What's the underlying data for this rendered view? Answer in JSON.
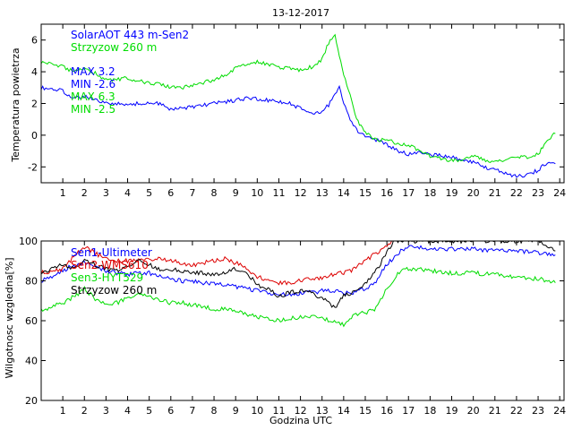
{
  "chart_data": [
    {
      "type": "line",
      "title": "13-12-2017",
      "xlabel": "",
      "ylabel": "Temperatura powietrza",
      "xlim": [
        0,
        24.2
      ],
      "ylim": [
        -3,
        7
      ],
      "xticks": [
        1,
        2,
        3,
        4,
        5,
        6,
        7,
        8,
        9,
        10,
        11,
        12,
        13,
        14,
        15,
        16,
        17,
        18,
        19,
        20,
        21,
        22,
        23,
        24
      ],
      "yticks": [
        -2,
        0,
        2,
        4,
        6
      ],
      "annotations": [
        "MAX 3.2",
        "MIN -2.6",
        "MAX 6.3",
        "MIN -2.5"
      ],
      "annotation_colors": [
        "#0000ff",
        "#0000ff",
        "#00dd00",
        "#00dd00"
      ],
      "series": [
        {
          "name": "SolarAOT 443 m-Sen2",
          "color": "#0000ff",
          "x": [
            0,
            0.5,
            1,
            1.5,
            2,
            2.5,
            3,
            3.5,
            4,
            4.5,
            5,
            5.5,
            6,
            6.5,
            7,
            7.5,
            8,
            8.5,
            9,
            9.5,
            10,
            10.5,
            11,
            11.5,
            12,
            12.5,
            13,
            13.3,
            13.6,
            13.8,
            14,
            14.3,
            14.6,
            15,
            15.5,
            16,
            16.5,
            17,
            17.5,
            18,
            18.5,
            19,
            19.5,
            20,
            20.5,
            21,
            21.5,
            22,
            22.5,
            23,
            23.5,
            23.8
          ],
          "y": [
            3.0,
            2.9,
            2.8,
            2.3,
            2.5,
            2.2,
            2.0,
            2.0,
            1.9,
            2.0,
            2.0,
            2.0,
            1.6,
            1.7,
            1.8,
            1.9,
            2.0,
            2.1,
            2.2,
            2.3,
            2.3,
            2.2,
            2.1,
            2.0,
            1.7,
            1.4,
            1.5,
            1.9,
            2.6,
            3.2,
            2.0,
            1.0,
            0.3,
            0.0,
            -0.3,
            -0.6,
            -1.0,
            -1.2,
            -1.0,
            -1.2,
            -1.3,
            -1.4,
            -1.6,
            -1.7,
            -2.0,
            -2.2,
            -2.4,
            -2.6,
            -2.5,
            -2.2,
            -1.6,
            -1.8
          ]
        },
        {
          "name": "Strzyzow 260 m",
          "color": "#00dd00",
          "x": [
            0,
            0.5,
            1,
            1.5,
            2,
            2.5,
            3,
            3.5,
            4,
            4.5,
            5,
            5.5,
            6,
            6.5,
            7,
            7.5,
            8,
            8.5,
            9,
            9.5,
            10,
            10.5,
            11,
            11.5,
            12,
            12.5,
            13,
            13.3,
            13.6,
            13.8,
            14,
            14.3,
            14.6,
            15,
            15.5,
            16,
            16.5,
            17,
            17.5,
            18,
            18.5,
            19,
            19.5,
            20,
            20.5,
            21,
            21.5,
            22,
            22.5,
            23,
            23.5,
            23.8
          ],
          "y": [
            4.6,
            4.5,
            4.3,
            4.0,
            4.2,
            3.9,
            3.5,
            3.5,
            3.6,
            3.4,
            3.3,
            3.2,
            3.0,
            3.0,
            3.1,
            3.3,
            3.5,
            3.8,
            4.2,
            4.5,
            4.6,
            4.5,
            4.3,
            4.2,
            4.1,
            4.3,
            4.8,
            5.8,
            6.3,
            5.0,
            3.9,
            2.5,
            1.0,
            0.2,
            -0.3,
            -0.3,
            -0.5,
            -0.6,
            -1.0,
            -1.3,
            -1.5,
            -1.6,
            -1.6,
            -1.3,
            -1.6,
            -1.7,
            -1.6,
            -1.4,
            -1.4,
            -1.2,
            -0.2,
            0.1
          ]
        }
      ]
    },
    {
      "type": "line",
      "title": "",
      "xlabel": "Godzina UTC",
      "ylabel": "Wilgotnosc wzgledna[%]",
      "xlim": [
        0,
        24.2
      ],
      "ylim": [
        20,
        100
      ],
      "xticks": [
        1,
        2,
        3,
        4,
        5,
        6,
        7,
        8,
        9,
        10,
        11,
        12,
        13,
        14,
        15,
        16,
        17,
        18,
        19,
        20,
        21,
        22,
        23,
        24
      ],
      "yticks": [
        20,
        40,
        60,
        80,
        100
      ],
      "series": [
        {
          "name": "Sen1-Ultimeter",
          "color": "#0000ff",
          "x": [
            0,
            0.5,
            1,
            1.5,
            2,
            2.5,
            3,
            3.5,
            4,
            4.5,
            5,
            5.5,
            6,
            6.5,
            7,
            7.5,
            8,
            8.5,
            9,
            9.5,
            10,
            10.5,
            11,
            11.5,
            12,
            12.5,
            13,
            13.5,
            14,
            14.5,
            15,
            15.5,
            16,
            16.5,
            17,
            17.5,
            18,
            19,
            20,
            21,
            22,
            23,
            23.8
          ],
          "y": [
            80,
            82,
            85,
            88,
            89,
            87,
            85,
            84,
            83,
            84,
            84,
            82,
            81,
            80,
            80,
            79,
            79,
            78,
            77,
            76,
            75,
            74,
            73,
            73,
            74,
            74,
            75,
            75,
            74,
            74,
            76,
            80,
            88,
            94,
            97,
            97,
            96,
            96,
            96,
            95,
            95,
            94,
            93
          ]
        },
        {
          "name": "Sen2-WMS610",
          "color": "#dd0000",
          "x": [
            0,
            0.5,
            1,
            1.5,
            2,
            2.5,
            3,
            3.5,
            4,
            4.5,
            5,
            5.5,
            6,
            6.5,
            7,
            7.5,
            8,
            8.5,
            9,
            9.5,
            10,
            10.5,
            11,
            11.5,
            12,
            12.5,
            13,
            13.5,
            14,
            14.5,
            15,
            15.5,
            16,
            16.3
          ],
          "y": [
            84,
            85,
            86,
            92,
            97,
            94,
            91,
            90,
            90,
            90,
            91,
            91,
            90,
            89,
            88,
            89,
            90,
            91,
            89,
            86,
            82,
            80,
            79,
            79,
            80,
            81,
            81,
            83,
            84,
            86,
            90,
            94,
            97,
            100
          ]
        },
        {
          "name": "Sen3-HYT529",
          "color": "#00dd00",
          "x": [
            0,
            0.5,
            1,
            1.5,
            2,
            2.5,
            3,
            3.5,
            4,
            4.5,
            5,
            5.5,
            6,
            6.5,
            7,
            7.5,
            8,
            8.5,
            9,
            9.5,
            10,
            10.5,
            11,
            11.5,
            12,
            12.5,
            13,
            13.5,
            14,
            14.5,
            15,
            15.5,
            16,
            16.5,
            17,
            17.5,
            18,
            19,
            20,
            21,
            22,
            23,
            23.8
          ],
          "y": [
            65,
            67,
            69,
            72,
            76,
            71,
            68,
            69,
            71,
            73,
            72,
            70,
            69,
            69,
            68,
            67,
            66,
            66,
            65,
            63,
            62,
            61,
            60,
            61,
            62,
            62,
            61,
            60,
            58,
            63,
            64,
            66,
            76,
            84,
            86,
            86,
            85,
            84,
            84,
            83,
            82,
            81,
            79
          ]
        },
        {
          "name": "Strzyzow 260 m",
          "color": "#000000",
          "x": [
            0,
            0.5,
            1,
            1.5,
            2,
            2.5,
            3,
            3.5,
            4,
            4.5,
            5,
            5.5,
            6,
            6.5,
            7,
            7.5,
            8,
            8.5,
            9,
            9.5,
            10,
            10.5,
            11,
            11.5,
            12,
            12.5,
            13,
            13.3,
            13.6,
            14,
            14.5,
            15,
            15.5,
            16,
            16.3,
            23,
            23.5,
            23.8
          ],
          "y": [
            83,
            86,
            88,
            86,
            91,
            88,
            86,
            85,
            87,
            90,
            88,
            86,
            86,
            85,
            84,
            84,
            83,
            84,
            86,
            84,
            78,
            76,
            72,
            74,
            75,
            74,
            71,
            69,
            66,
            73,
            74,
            79,
            85,
            94,
            100,
            100,
            97,
            95
          ]
        }
      ]
    }
  ]
}
